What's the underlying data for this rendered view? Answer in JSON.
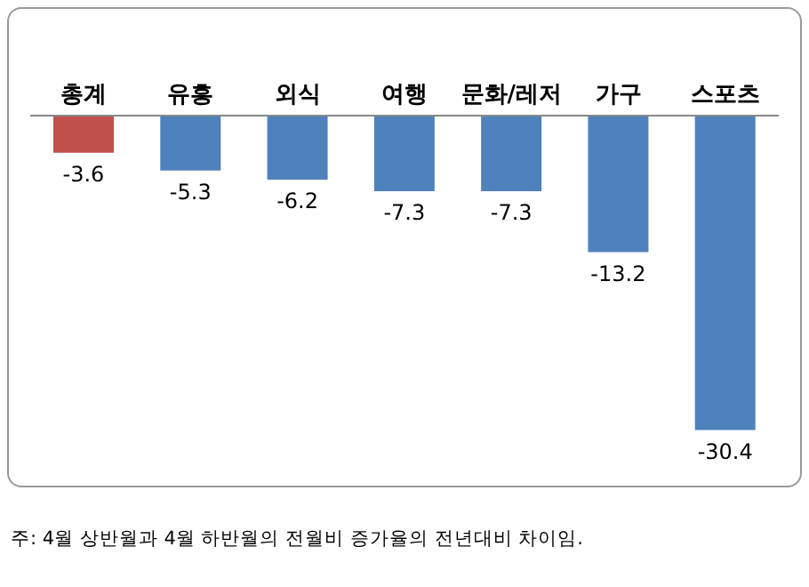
{
  "chart_data": {
    "type": "bar",
    "categories": [
      "총계",
      "유흥",
      "외식",
      "여행",
      "문화/레저",
      "가구",
      "스포츠"
    ],
    "values": [
      -3.6,
      -5.3,
      -6.2,
      -7.3,
      -7.3,
      -13.2,
      -30.4
    ],
    "colors": [
      "#c0504d",
      "#4f81bd",
      "#4f81bd",
      "#4f81bd",
      "#4f81bd",
      "#4f81bd",
      "#4f81bd"
    ],
    "data_labels": true,
    "legend": false,
    "grid": false,
    "annotations": [
      "주: 4월 상반월과 4월 하반월의 전월비 증가율의 전년대비 차이임."
    ]
  }
}
